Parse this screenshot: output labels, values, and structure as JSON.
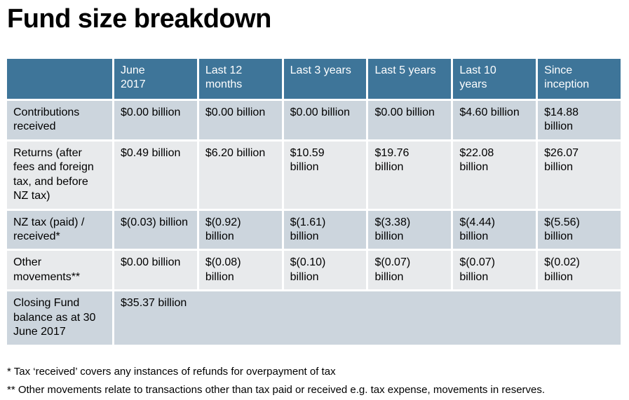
{
  "title": "Fund size breakdown",
  "colors": {
    "header_bg": "#3E7599",
    "header_text": "#FFFFFF",
    "row_dark": "#CCD5DD",
    "row_light": "#E8EAEC",
    "body_text": "#000000"
  },
  "table": {
    "columns": [
      "",
      "June\n2017",
      "Last 12\nmonths",
      "Last 3 years",
      "Last 5 years",
      "Last 10\nyears",
      "Since\ninception"
    ],
    "rows": [
      {
        "label": "Contributions received",
        "values": [
          "$0.00 billion",
          "$0.00 billion",
          "$0.00 billion",
          "$0.00 billion",
          "$4.60 billion",
          "$14.88\nbillion"
        ]
      },
      {
        "label": "Returns (after fees and foreign tax, and  before NZ tax)",
        "values": [
          "$0.49 billion",
          "$6.20 billion",
          "$10.59\nbillion",
          "$19.76\nbillion",
          "$22.08\nbillion",
          "$26.07\nbillion"
        ]
      },
      {
        "label": "NZ tax (paid) / received*",
        "values": [
          "$(0.03) billion",
          "$(0.92)\nbillion",
          "$(1.61)\nbillion",
          "$(3.38)\nbillion",
          "$(4.44)\nbillion",
          "$(5.56)\nbillion"
        ]
      },
      {
        "label": "Other movements**",
        "values": [
          "$0.00 billion",
          "$(0.08)\nbillion",
          "$(0.10)\nbillion",
          "$(0.07)\nbillion",
          "$(0.07)\nbillion",
          "$(0.02)\nbillion"
        ]
      }
    ],
    "closing_row": {
      "label": "Closing Fund balance as at 30 June 2017",
      "value": "$35.37 billion"
    }
  },
  "footnotes": [
    "* Tax ‘received’ covers any instances of refunds for overpayment of tax",
    "** Other movements relate to transactions other than tax paid or received e.g. tax expense, movements in reserves."
  ]
}
